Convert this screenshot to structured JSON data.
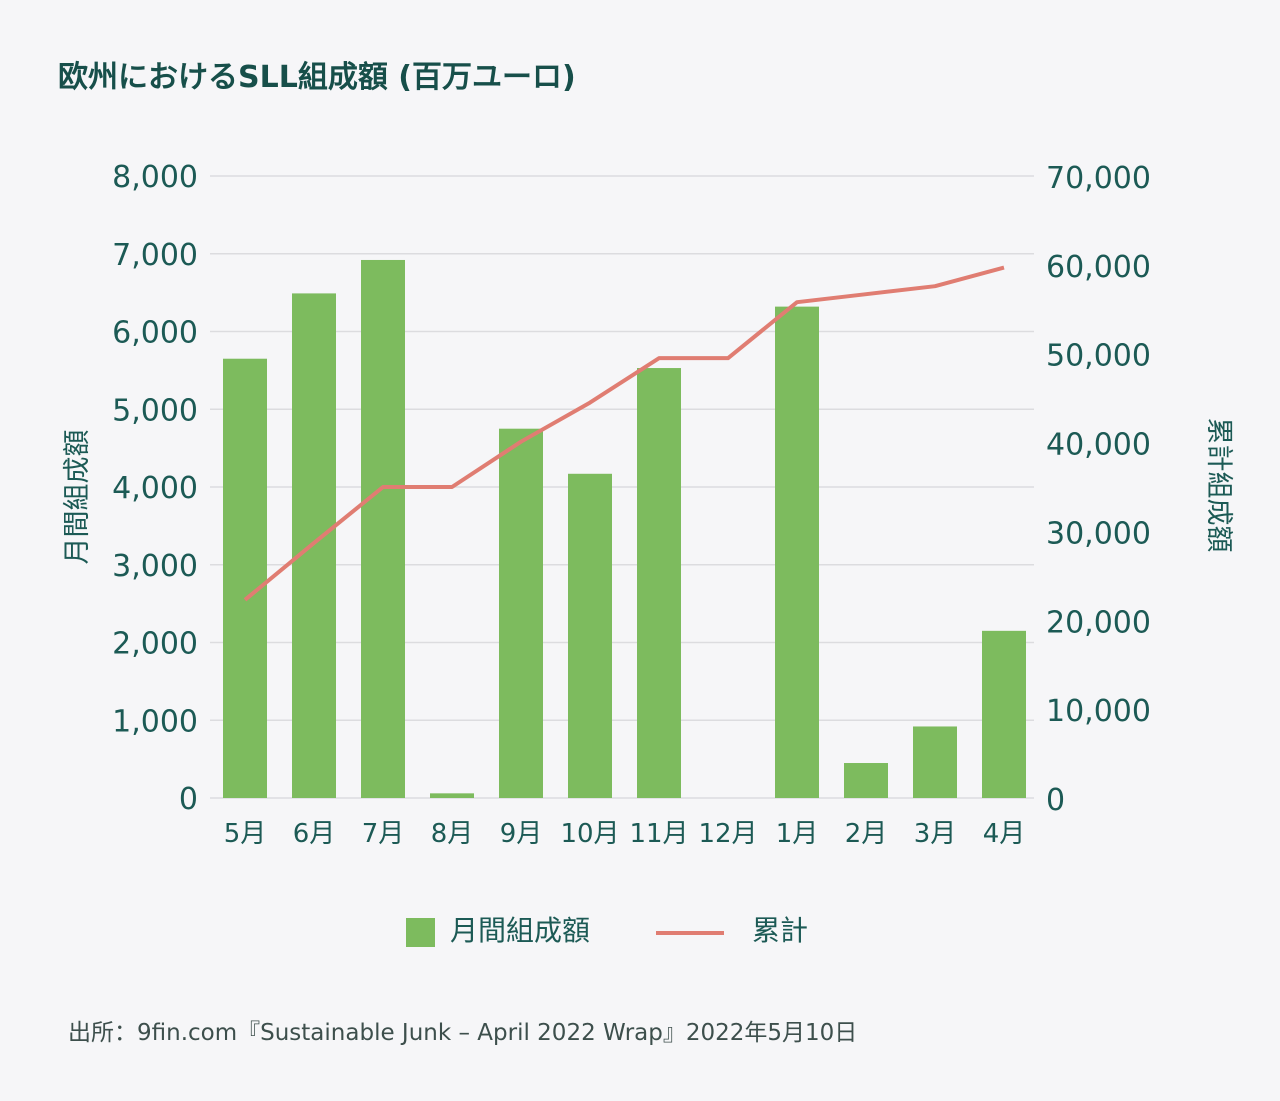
{
  "title": "欧州におけるSLL組成額 (百万ユーロ)",
  "source": "出所：9fin.com『Sustainable Junk – April 2022 Wrap』2022年5月10日",
  "colors": {
    "bar": "#7dbb5e",
    "line": "#e07d72",
    "text": "#1c5a55",
    "grid": "#dcdcdf"
  },
  "chart_data": {
    "type": "bar",
    "categories": [
      "5月",
      "6月",
      "7月",
      "8月",
      "9月",
      "10月",
      "11月",
      "12月",
      "1月",
      "2月",
      "3月",
      "4月"
    ],
    "series": [
      {
        "name": "月間組成額",
        "type": "bar",
        "axis": "left",
        "values": [
          5650,
          6490,
          6920,
          60,
          4750,
          4170,
          5530,
          0,
          6320,
          450,
          920,
          2150
        ]
      },
      {
        "name": "累計",
        "type": "line",
        "axis": "right",
        "values": [
          22300,
          28700,
          35000,
          35000,
          40100,
          44500,
          49500,
          49500,
          55800,
          56700,
          57600,
          59700
        ]
      }
    ],
    "ylabel": "月間組成額",
    "y2label": "累計組成額",
    "ylim": [
      0,
      8000
    ],
    "y2lim": [
      0,
      70000
    ],
    "yticks": [
      "0",
      "1,000",
      "2,000",
      "3,000",
      "4,000",
      "5,000",
      "6,000",
      "7,000",
      "8,000"
    ],
    "y2ticks": [
      "0",
      "10,000",
      "20,000",
      "30,000",
      "40,000",
      "50,000",
      "60,000",
      "70,000"
    ],
    "grid": true,
    "legend": "bottom"
  }
}
